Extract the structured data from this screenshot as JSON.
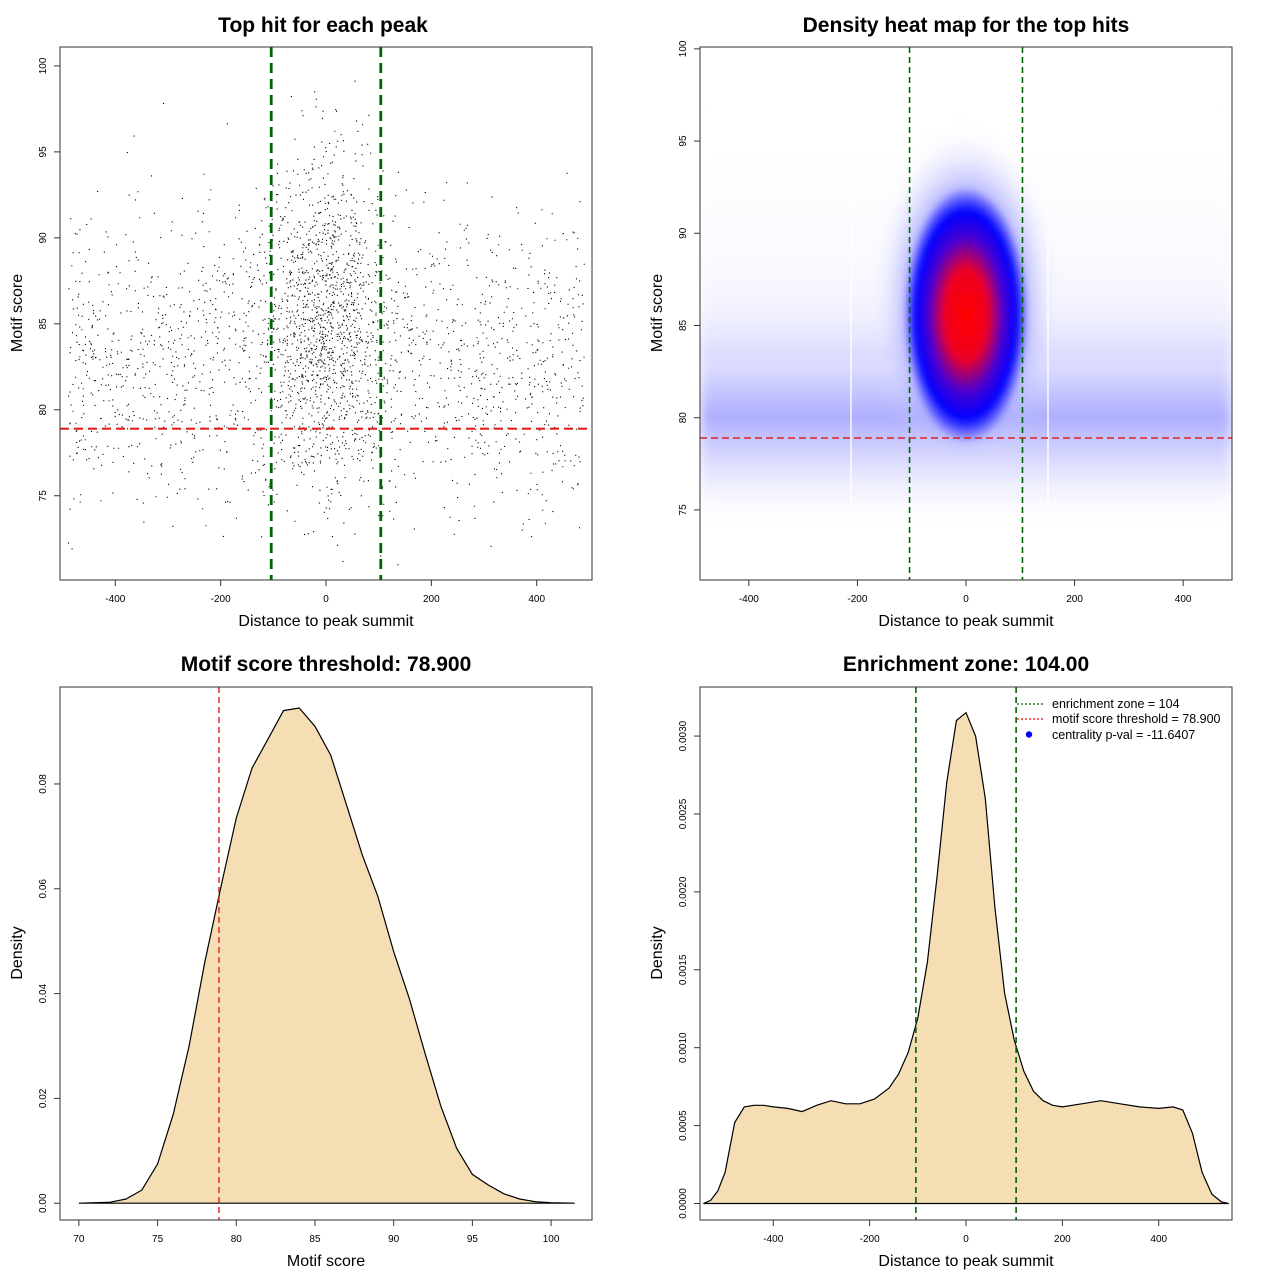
{
  "chart_data": [
    {
      "type": "scatter",
      "title": "Top hit for each peak",
      "xlabel": "Distance to peak summit",
      "ylabel": "Motif score",
      "xlim": [
        -505,
        505
      ],
      "ylim": [
        70.1,
        101.1
      ],
      "xticks": [
        -400,
        -200,
        0,
        200,
        400
      ],
      "yticks": [
        75,
        80,
        85,
        90,
        95,
        100
      ],
      "vlines": [
        -104,
        104
      ],
      "hline": 78.9,
      "grid": false,
      "point_cloud": {
        "approx_points": 21000,
        "x_range": [
          -490,
          490
        ],
        "background_score_mean": 82.8,
        "background_score_sd": 4.2,
        "central_score_mean": 85.5,
        "central_score_sd": 4.8,
        "central_x_sd": 55
      }
    },
    {
      "type": "heatmap",
      "title": "Density heat map for the top hits",
      "xlabel": "Distance to peak summit",
      "ylabel": "Motif score",
      "xlim": [
        -490,
        490
      ],
      "ylim": [
        71.2,
        100.1
      ],
      "xticks": [
        -400,
        -200,
        0,
        200,
        400
      ],
      "yticks": [
        75,
        80,
        85,
        90,
        95,
        100
      ],
      "vlines": [
        -104,
        104
      ],
      "hline": 78.9,
      "peak": {
        "x": 0,
        "score": 85.3
      },
      "colors": [
        "#ffffff",
        "#0000ff",
        "#ff0000"
      ],
      "grid": false
    },
    {
      "type": "area",
      "title": "Motif score threshold: 78.900",
      "xlabel": "Motif score",
      "ylabel": "Density",
      "xlim": [
        68.8,
        102.6
      ],
      "ylim": [
        -0.0032,
        0.0985
      ],
      "xticks": [
        70,
        75,
        80,
        85,
        90,
        95,
        100
      ],
      "yticks": [
        0.0,
        0.02,
        0.04,
        0.06,
        0.08
      ],
      "ytick_labels": [
        "0.00",
        "0.02",
        "0.04",
        "0.06",
        "0.08"
      ],
      "vline": 78.9,
      "fill": "#f5deb3",
      "x": [
        70,
        72,
        73,
        74,
        75,
        76,
        77,
        78,
        79,
        80,
        81,
        82,
        83,
        84,
        85,
        86,
        87,
        88,
        89,
        90,
        91,
        92,
        93,
        94,
        95,
        96,
        97,
        98,
        99,
        100,
        101.5
      ],
      "y": [
        0,
        0.0002,
        0.0008,
        0.0025,
        0.0075,
        0.017,
        0.03,
        0.046,
        0.06,
        0.0735,
        0.083,
        0.0885,
        0.094,
        0.0945,
        0.091,
        0.0855,
        0.076,
        0.0665,
        0.0585,
        0.048,
        0.039,
        0.0285,
        0.0185,
        0.0105,
        0.0055,
        0.0035,
        0.0018,
        0.0008,
        0.0003,
        0.0001,
        0
      ]
    },
    {
      "type": "area",
      "title": "Enrichment zone: 104.00",
      "xlabel": "Distance to peak summit",
      "ylabel": "Density",
      "xlim": [
        -552,
        552
      ],
      "ylim": [
        -0.000106,
        0.003315
      ],
      "xticks": [
        -400,
        -200,
        0,
        200,
        400
      ],
      "yticks": [
        0.0,
        0.0005,
        0.001,
        0.0015,
        0.002,
        0.0025,
        0.003
      ],
      "ytick_labels": [
        "0.0000",
        "0.0005",
        "0.0010",
        "0.0015",
        "0.0020",
        "0.0025",
        "0.0030"
      ],
      "vlines": [
        -104,
        104
      ],
      "fill": "#f5deb3",
      "legend_position": "top-right",
      "legend": [
        {
          "label": "enrichment zone = 104",
          "color": "#006400",
          "style": "dotted"
        },
        {
          "label": "motif score threshold = 78.900",
          "color": "#ff0000",
          "style": "dotted"
        },
        {
          "label": "centrality p-val = -11.6407",
          "color": "#0000ff",
          "style": "point"
        }
      ],
      "x": [
        -545,
        -530,
        -515,
        -500,
        -480,
        -460,
        -440,
        -420,
        -400,
        -370,
        -340,
        -310,
        -280,
        -250,
        -220,
        -190,
        -160,
        -140,
        -120,
        -100,
        -80,
        -60,
        -40,
        -20,
        0,
        20,
        40,
        60,
        80,
        100,
        120,
        140,
        160,
        180,
        200,
        240,
        280,
        320,
        360,
        400,
        430,
        450,
        470,
        490,
        510,
        530,
        545
      ],
      "y": [
        0,
        2e-05,
        8e-05,
        0.0002,
        0.00052,
        0.00062,
        0.00063,
        0.00063,
        0.00062,
        0.00061,
        0.00059,
        0.00063,
        0.00066,
        0.00064,
        0.00064,
        0.00067,
        0.00074,
        0.00083,
        0.00097,
        0.00119,
        0.00155,
        0.0021,
        0.0027,
        0.0031,
        0.00315,
        0.003,
        0.0026,
        0.0019,
        0.00135,
        0.00105,
        0.00085,
        0.00072,
        0.00066,
        0.00063,
        0.00062,
        0.00064,
        0.00066,
        0.00064,
        0.00062,
        0.00061,
        0.00062,
        0.0006,
        0.00045,
        0.0002,
        6e-05,
        1e-05,
        0
      ]
    }
  ]
}
